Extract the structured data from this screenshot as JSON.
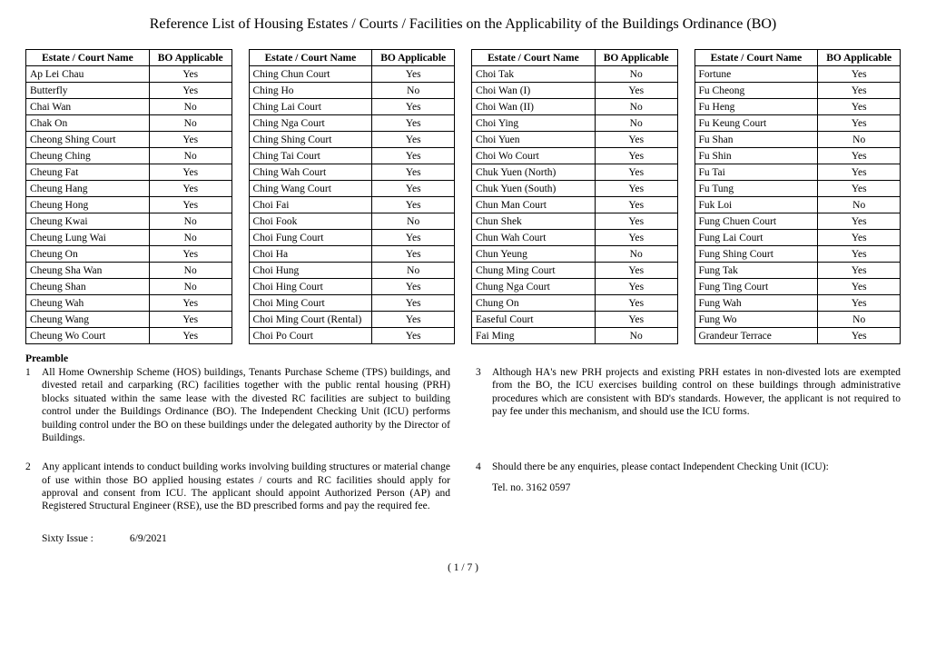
{
  "title": "Reference List of Housing Estates / Courts / Facilities on the Applicability of the Buildings Ordinance (BO)",
  "headers": {
    "name": "Estate / Court Name",
    "applicable": "BO Applicable"
  },
  "columns": [
    [
      {
        "n": "Ap Lei Chau",
        "a": "Yes"
      },
      {
        "n": "Butterfly",
        "a": "Yes"
      },
      {
        "n": "Chai Wan",
        "a": "No"
      },
      {
        "n": "Chak On",
        "a": "No"
      },
      {
        "n": "Cheong Shing Court",
        "a": "Yes"
      },
      {
        "n": "Cheung Ching",
        "a": "No"
      },
      {
        "n": "Cheung Fat",
        "a": "Yes"
      },
      {
        "n": "Cheung Hang",
        "a": "Yes"
      },
      {
        "n": "Cheung Hong",
        "a": "Yes"
      },
      {
        "n": "Cheung Kwai",
        "a": "No"
      },
      {
        "n": "Cheung Lung Wai",
        "a": "No"
      },
      {
        "n": "Cheung On",
        "a": "Yes"
      },
      {
        "n": "Cheung Sha Wan",
        "a": "No"
      },
      {
        "n": "Cheung Shan",
        "a": "No"
      },
      {
        "n": "Cheung Wah",
        "a": "Yes"
      },
      {
        "n": "Cheung Wang",
        "a": "Yes"
      },
      {
        "n": "Cheung Wo Court",
        "a": "Yes"
      }
    ],
    [
      {
        "n": "Ching Chun Court",
        "a": "Yes"
      },
      {
        "n": "Ching Ho",
        "a": "No"
      },
      {
        "n": "Ching Lai Court",
        "a": "Yes"
      },
      {
        "n": "Ching Nga Court",
        "a": "Yes"
      },
      {
        "n": "Ching Shing Court",
        "a": "Yes"
      },
      {
        "n": "Ching Tai Court",
        "a": "Yes"
      },
      {
        "n": "Ching Wah Court",
        "a": "Yes"
      },
      {
        "n": "Ching Wang Court",
        "a": "Yes"
      },
      {
        "n": "Choi Fai",
        "a": "Yes"
      },
      {
        "n": "Choi Fook",
        "a": "No"
      },
      {
        "n": "Choi Fung Court",
        "a": "Yes"
      },
      {
        "n": "Choi Ha",
        "a": "Yes"
      },
      {
        "n": "Choi Hung",
        "a": "No"
      },
      {
        "n": "Choi Hing Court",
        "a": "Yes"
      },
      {
        "n": "Choi Ming Court",
        "a": "Yes"
      },
      {
        "n": "Choi Ming Court (Rental)",
        "a": "Yes"
      },
      {
        "n": "Choi Po Court",
        "a": "Yes"
      }
    ],
    [
      {
        "n": "Choi Tak",
        "a": "No"
      },
      {
        "n": "Choi Wan (I)",
        "a": "Yes"
      },
      {
        "n": "Choi Wan (II)",
        "a": "No"
      },
      {
        "n": "Choi Ying",
        "a": "No"
      },
      {
        "n": "Choi Yuen",
        "a": "Yes"
      },
      {
        "n": "Choi Wo Court",
        "a": "Yes"
      },
      {
        "n": "Chuk Yuen (North)",
        "a": "Yes"
      },
      {
        "n": "Chuk Yuen (South)",
        "a": "Yes"
      },
      {
        "n": "Chun Man Court",
        "a": "Yes"
      },
      {
        "n": "Chun Shek",
        "a": "Yes"
      },
      {
        "n": "Chun Wah Court",
        "a": "Yes"
      },
      {
        "n": "Chun Yeung",
        "a": "No"
      },
      {
        "n": "Chung Ming Court",
        "a": "Yes"
      },
      {
        "n": "Chung Nga Court",
        "a": "Yes"
      },
      {
        "n": "Chung On",
        "a": "Yes"
      },
      {
        "n": "Easeful Court",
        "a": "Yes"
      },
      {
        "n": "Fai Ming",
        "a": "No"
      }
    ],
    [
      {
        "n": "Fortune",
        "a": "Yes"
      },
      {
        "n": "Fu Cheong",
        "a": "Yes"
      },
      {
        "n": "Fu Heng",
        "a": "Yes"
      },
      {
        "n": "Fu Keung Court",
        "a": "Yes"
      },
      {
        "n": "Fu Shan",
        "a": "No"
      },
      {
        "n": "Fu Shin",
        "a": "Yes"
      },
      {
        "n": "Fu Tai",
        "a": "Yes"
      },
      {
        "n": "Fu Tung",
        "a": "Yes"
      },
      {
        "n": "Fuk Loi",
        "a": "No"
      },
      {
        "n": "Fung Chuen Court",
        "a": "Yes"
      },
      {
        "n": "Fung Lai Court",
        "a": "Yes"
      },
      {
        "n": "Fung Shing Court",
        "a": "Yes"
      },
      {
        "n": "Fung Tak",
        "a": "Yes"
      },
      {
        "n": "Fung Ting Court",
        "a": "Yes"
      },
      {
        "n": "Fung Wah",
        "a": "Yes"
      },
      {
        "n": "Fung Wo",
        "a": "No"
      },
      {
        "n": "Grandeur Terrace",
        "a": "Yes"
      }
    ]
  ],
  "preamble_label": "Preamble",
  "notes": [
    {
      "num": "1",
      "text": "All Home Ownership Scheme (HOS) buildings, Tenants Purchase Scheme (TPS) buildings, and divested retail and carparking (RC) facilities together with the public rental housing (PRH) blocks situated within the same lease with the divested RC facilities are subject to building control under the Buildings Ordinance (BO).  The Independent Checking Unit (ICU) performs building control under the BO on these buildings under the delegated authority by the Director of Buildings."
    },
    {
      "num": "3",
      "text": "Although HA's new PRH projects and existing PRH estates in non-divested lots are exempted from the BO, the ICU exercises building control on these buildings through administrative procedures which are consistent with BD's standards.  However, the applicant is not required to pay fee under this mechanism, and should use the ICU forms."
    },
    {
      "num": "2",
      "text": "Any applicant intends to conduct building works involving building structures or material change of use within those BO applied housing estates / courts and RC facilities should apply for approval and consent from ICU.  The applicant should appoint Authorized Person (AP) and Registered Structural Engineer (RSE), use the BD prescribed forms and pay the required fee."
    },
    {
      "num": "4",
      "text": "Should there be any enquiries, please contact Independent Checking Unit (ICU):",
      "tel": "Tel. no. 3162 0597"
    }
  ],
  "issue": {
    "label": "Sixty Issue :",
    "date": "6/9/2021"
  },
  "page": "( 1 /  7 )"
}
